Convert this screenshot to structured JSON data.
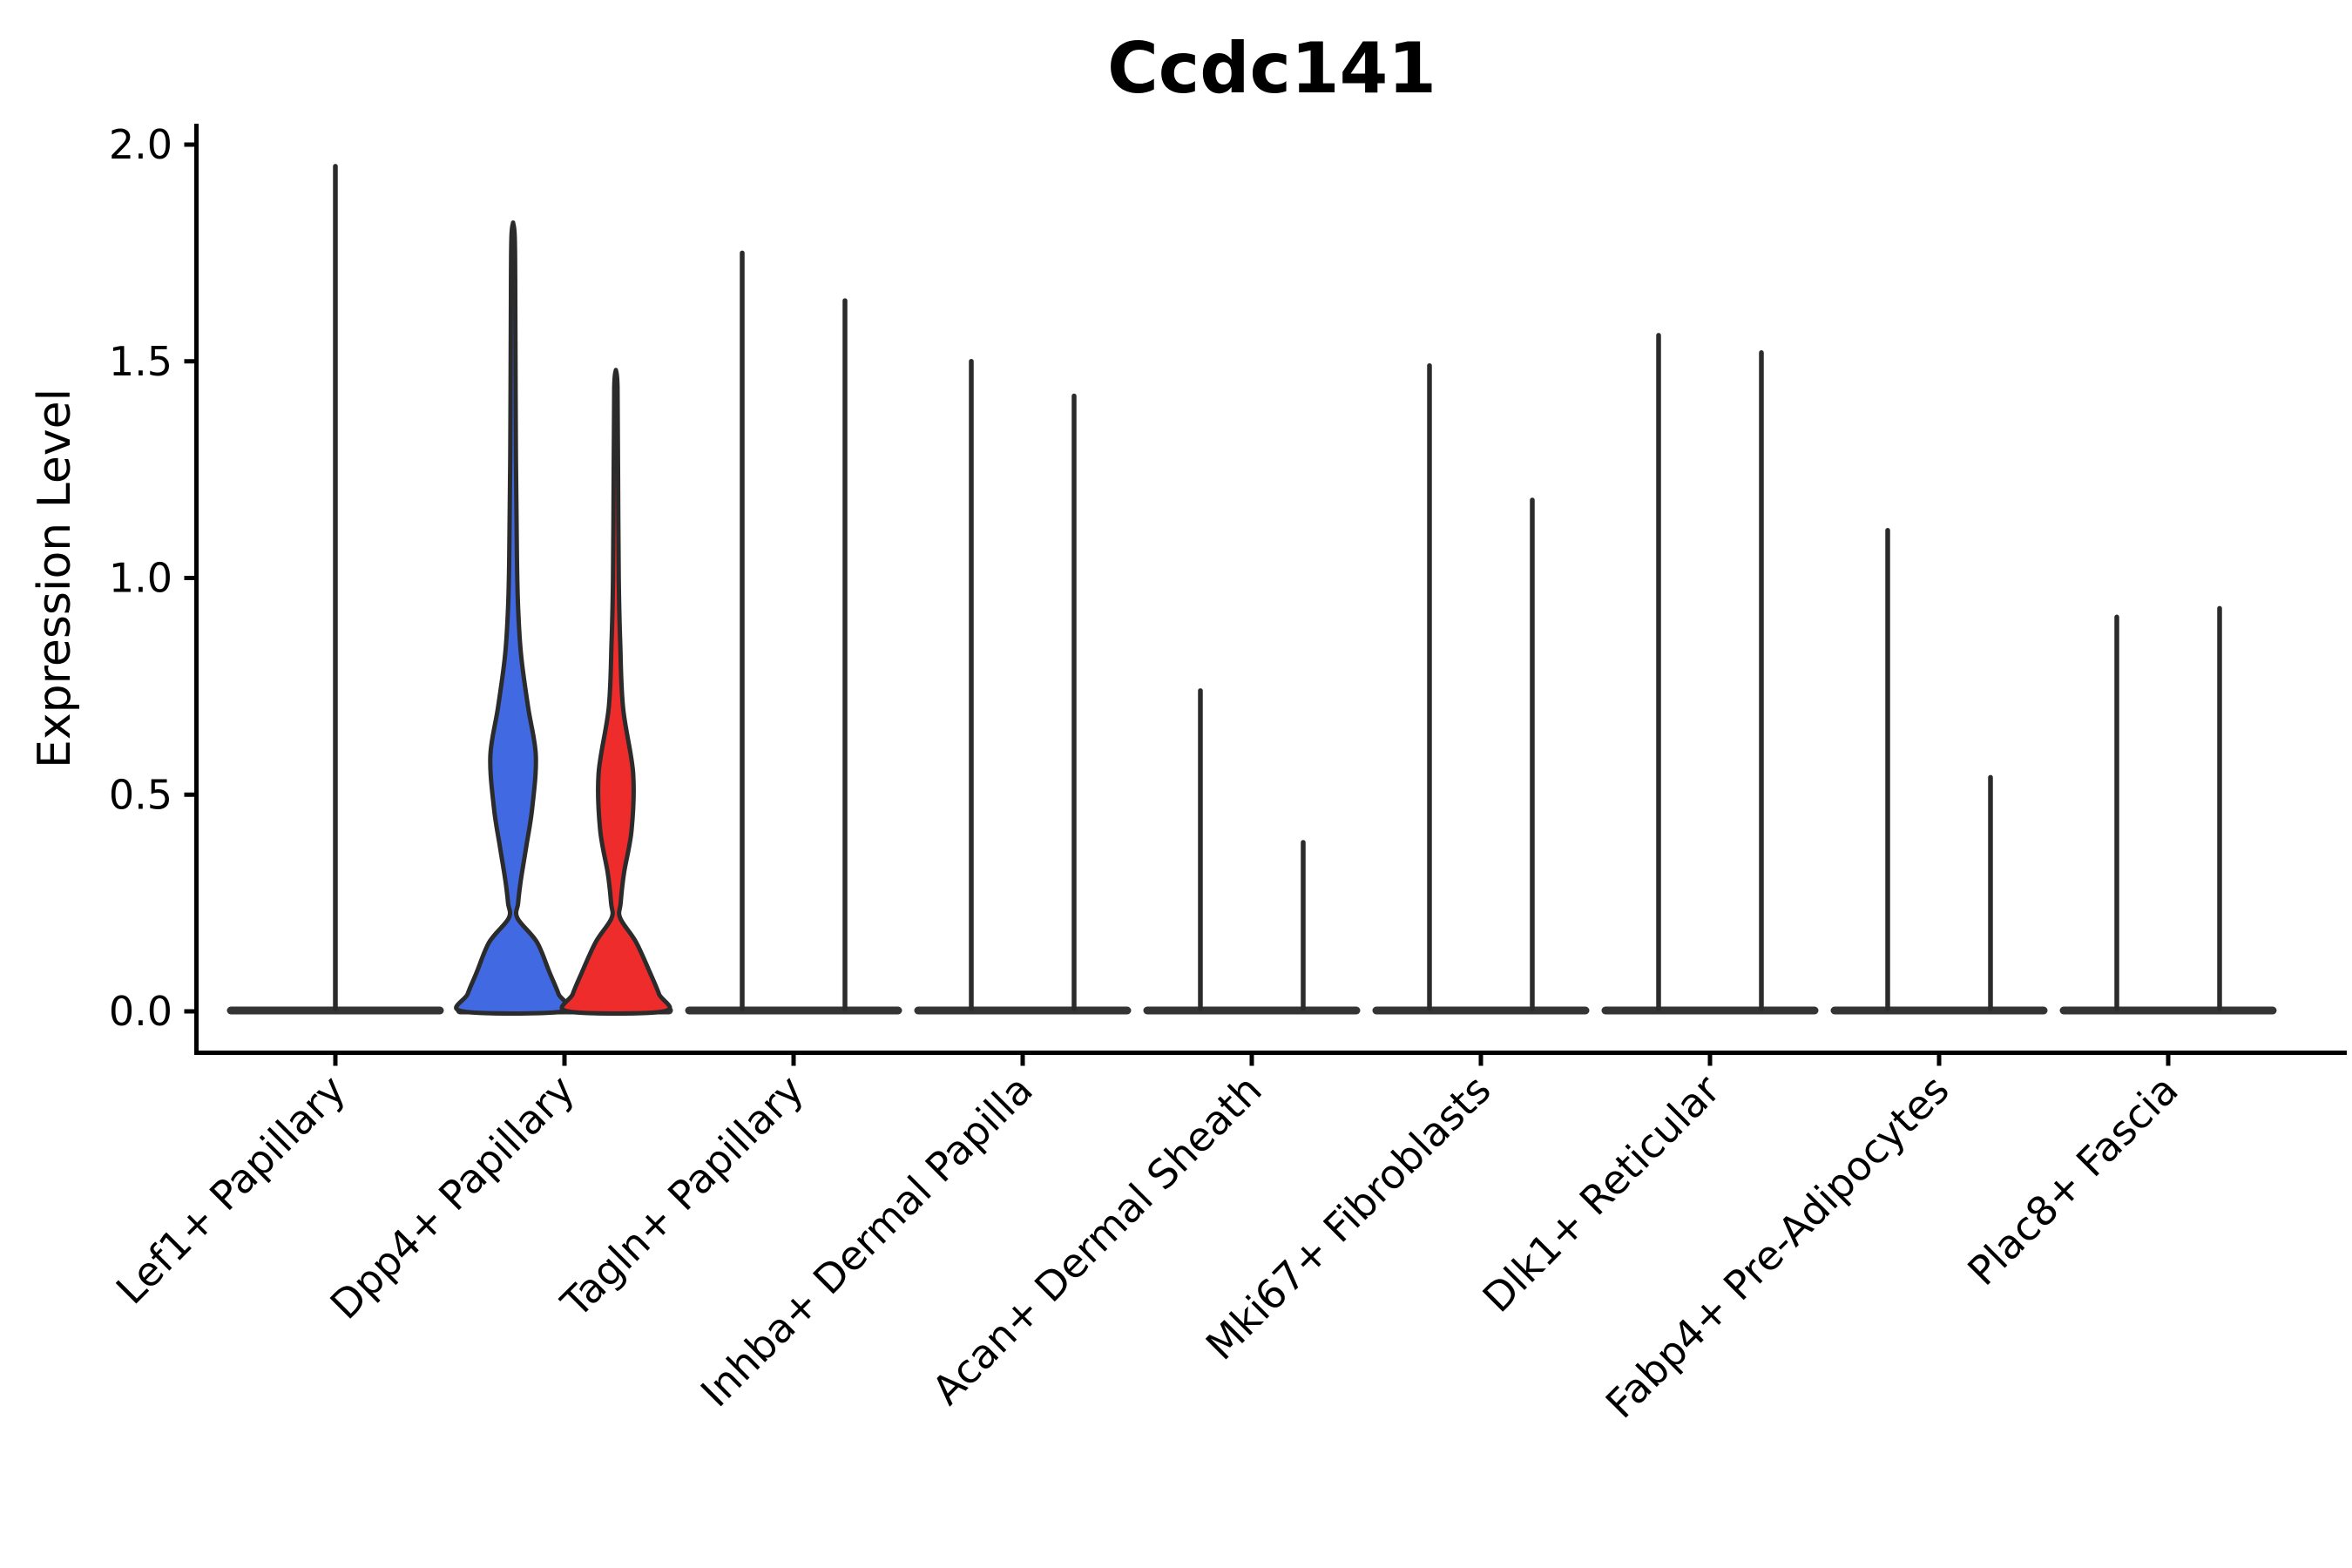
{
  "chart_data": {
    "type": "violin",
    "title": "Ccdc141",
    "xlabel": "",
    "ylabel": "Expression Level",
    "ylim": [
      0.0,
      2.0
    ],
    "yticks": [
      0.0,
      0.5,
      1.0,
      1.5,
      2.0
    ],
    "grid": false,
    "legend": "none",
    "colors": {
      "blue_fill": "#4169E1",
      "red_fill": "#EE2C2C",
      "outline": "#2b2b2b",
      "axis": "#000000",
      "baseline_bar": "#343434"
    },
    "categories": [
      {
        "label": "Lef1+ Papillary",
        "violins": [
          {
            "position": "center",
            "max": 1.95,
            "filled": false
          }
        ]
      },
      {
        "label": "Dpp4+ Papillary",
        "violins": [
          {
            "position": "left",
            "max": 1.82,
            "filled": true,
            "fill": "#4169E1",
            "profile": [
              [
                1.82,
                0.0
              ],
              [
                1.78,
                0.035
              ],
              [
                1.6,
                0.045
              ],
              [
                1.3,
                0.055
              ],
              [
                1.05,
                0.075
              ],
              [
                0.93,
                0.1
              ],
              [
                0.82,
                0.16
              ],
              [
                0.7,
                0.3
              ],
              [
                0.59,
                0.45
              ],
              [
                0.47,
                0.38
              ],
              [
                0.38,
                0.26
              ],
              [
                0.3,
                0.15
              ],
              [
                0.25,
                0.1
              ],
              [
                0.215,
                0.086
              ],
              [
                0.16,
                0.47
              ],
              [
                0.09,
                0.72
              ],
              [
                0.04,
                0.9
              ],
              [
                0.0,
                1.0
              ]
            ]
          },
          {
            "position": "right",
            "max": 1.48,
            "filled": true,
            "fill": "#EE2C2C",
            "profile": [
              [
                1.48,
                0.0
              ],
              [
                1.44,
                0.035
              ],
              [
                1.25,
                0.045
              ],
              [
                1.0,
                0.06
              ],
              [
                0.85,
                0.09
              ],
              [
                0.7,
                0.15
              ],
              [
                0.55,
                0.36
              ],
              [
                0.42,
                0.33
              ],
              [
                0.32,
                0.17
              ],
              [
                0.25,
                0.1
              ],
              [
                0.215,
                0.09
              ],
              [
                0.16,
                0.42
              ],
              [
                0.09,
                0.71
              ],
              [
                0.04,
                0.9
              ],
              [
                0.0,
                1.0
              ]
            ]
          }
        ]
      },
      {
        "label": "Tagln+ Papillary",
        "violins": [
          {
            "position": "left",
            "max": 1.75,
            "filled": false
          },
          {
            "position": "right",
            "max": 1.64,
            "filled": false
          }
        ]
      },
      {
        "label": "Inhba+ Dermal Papilla",
        "violins": [
          {
            "position": "left",
            "max": 1.5,
            "filled": false
          },
          {
            "position": "right",
            "max": 1.42,
            "filled": false
          }
        ]
      },
      {
        "label": "Acan+ Dermal Sheath",
        "violins": [
          {
            "position": "left",
            "max": 0.74,
            "filled": false
          },
          {
            "position": "right",
            "max": 0.39,
            "filled": false
          }
        ]
      },
      {
        "label": "Mki67+ Fibroblasts",
        "violins": [
          {
            "position": "left",
            "max": 1.49,
            "filled": false
          },
          {
            "position": "right",
            "max": 1.18,
            "filled": false
          }
        ]
      },
      {
        "label": "Dlk1+ Reticular",
        "violins": [
          {
            "position": "left",
            "max": 1.56,
            "filled": false
          },
          {
            "position": "right",
            "max": 1.52,
            "filled": false
          }
        ]
      },
      {
        "label": "Fabp4+ Pre-Adipocytes",
        "violins": [
          {
            "position": "left",
            "max": 1.11,
            "filled": false
          },
          {
            "position": "right",
            "max": 0.54,
            "filled": false
          }
        ]
      },
      {
        "label": "Plac8+ Fascia",
        "violins": [
          {
            "position": "left",
            "max": 0.91,
            "filled": false
          },
          {
            "position": "right",
            "max": 0.93,
            "filled": false
          }
        ]
      }
    ]
  }
}
